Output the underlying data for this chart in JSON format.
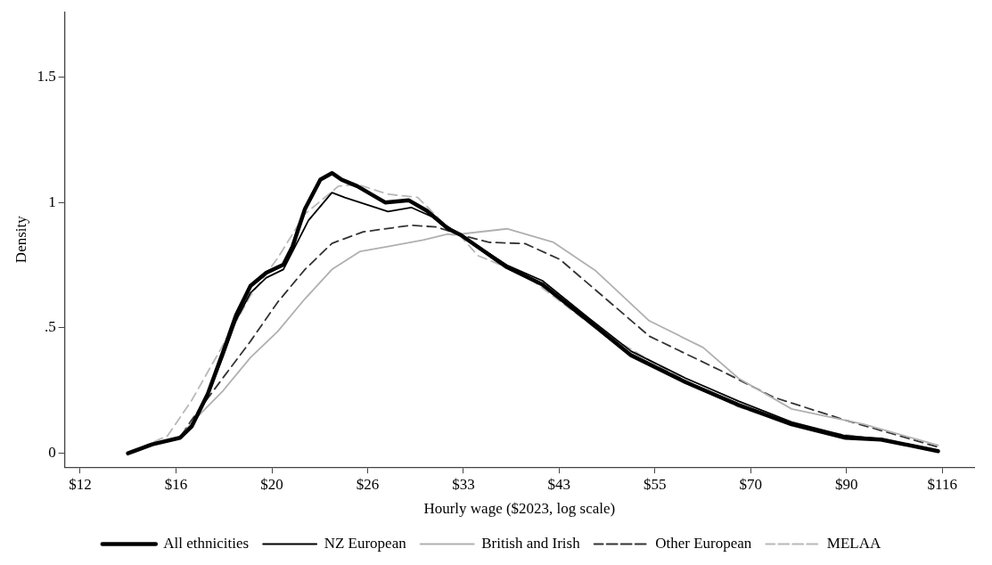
{
  "chart_data": {
    "type": "line",
    "xlabel": "Hourly wage ($2023, log scale)",
    "ylabel": "Density",
    "log": "x",
    "xlim": [
      11.7,
      125.6
    ],
    "xticks": [
      {
        "value": 12.18,
        "label": "$12"
      },
      {
        "value": 15.64,
        "label": "$16"
      },
      {
        "value": 20.09,
        "label": "$20"
      },
      {
        "value": 25.79,
        "label": "$26"
      },
      {
        "value": 33.12,
        "label": "$33"
      },
      {
        "value": 42.52,
        "label": "$43"
      },
      {
        "value": 54.6,
        "label": "$55"
      },
      {
        "value": 70.11,
        "label": "$70"
      },
      {
        "value": 90.02,
        "label": "$90"
      },
      {
        "value": 115.58,
        "label": "$116"
      }
    ],
    "ylim": [
      -0.055,
      1.76
    ],
    "yticks": [
      0,
      {
        "value": 0.5,
        "label": ".5"
      },
      1,
      1.5
    ],
    "grid": false,
    "legend": "bottom",
    "marker": "none",
    "series": [
      {
        "name": "All ethnicities",
        "color": "#000000",
        "line_style": "solid",
        "x": [
          13.8,
          14.7,
          15.8,
          16.3,
          17.0,
          17.7,
          18.3,
          19.0,
          19.8,
          20.7,
          21.2,
          21.9,
          22.8,
          23.5,
          24.1,
          25.1,
          27.0,
          28.7,
          30.1,
          31.8,
          32.9,
          37.1,
          40.7,
          45.9,
          51.3,
          59.1,
          67.9,
          78.0,
          89.8,
          98.5,
          114.3
        ],
        "values": [
          0.0,
          0.036,
          0.062,
          0.108,
          0.238,
          0.407,
          0.551,
          0.668,
          0.72,
          0.752,
          0.824,
          0.974,
          1.091,
          1.117,
          1.091,
          1.065,
          1.0,
          1.009,
          0.967,
          0.896,
          0.87,
          0.742,
          0.673,
          0.528,
          0.391,
          0.284,
          0.193,
          0.116,
          0.062,
          0.055,
          0.009
        ]
      },
      {
        "name": "NZ European",
        "color": "#000000",
        "line_style": "solid",
        "x": [
          13.8,
          14.7,
          15.8,
          16.3,
          17.0,
          17.7,
          18.3,
          19.0,
          19.8,
          20.7,
          22.1,
          23.5,
          24.3,
          27.2,
          28.9,
          30.6,
          32.9,
          37.1,
          40.7,
          45.9,
          51.3,
          59.1,
          67.9,
          78.0,
          89.8,
          98.5,
          114.3
        ],
        "values": [
          0.0,
          0.036,
          0.062,
          0.108,
          0.23,
          0.39,
          0.531,
          0.64,
          0.7,
          0.733,
          0.928,
          1.039,
          1.02,
          0.964,
          0.98,
          0.941,
          0.87,
          0.75,
          0.688,
          0.54,
          0.407,
          0.3,
          0.208,
          0.125,
          0.07,
          0.058,
          0.012
        ]
      },
      {
        "name": "British and Irish",
        "color": "#b0b0b0",
        "line_style": "solid",
        "x": [
          13.8,
          14.7,
          15.8,
          16.3,
          17.7,
          19.0,
          20.4,
          21.9,
          23.5,
          25.3,
          27.2,
          29.8,
          31.8,
          32.3,
          37.1,
          41.9,
          46.8,
          53.8,
          61.9,
          67.9,
          78.0,
          94.0,
          114.3
        ],
        "values": [
          0.0,
          0.036,
          0.062,
          0.123,
          0.251,
          0.382,
          0.486,
          0.616,
          0.733,
          0.805,
          0.824,
          0.85,
          0.874,
          0.871,
          0.895,
          0.841,
          0.727,
          0.528,
          0.422,
          0.299,
          0.177,
          0.117,
          0.032
        ]
      },
      {
        "name": "Other European",
        "color": "#333333",
        "line_style": "dashed",
        "x": [
          13.8,
          14.7,
          15.8,
          16.3,
          17.7,
          19.0,
          20.4,
          21.9,
          23.5,
          25.5,
          28.9,
          30.9,
          32.9,
          35.4,
          38.9,
          42.6,
          46.8,
          53.8,
          64.8,
          74.5,
          89.8,
          114.3
        ],
        "values": [
          0.0,
          0.036,
          0.062,
          0.134,
          0.303,
          0.447,
          0.603,
          0.733,
          0.837,
          0.883,
          0.909,
          0.902,
          0.87,
          0.841,
          0.836,
          0.773,
          0.65,
          0.467,
          0.33,
          0.223,
          0.132,
          0.025
        ]
      },
      {
        "name": "MELAA",
        "color": "#b8b8b8",
        "line_style": "dashed",
        "x": [
          13.8,
          15.3,
          16.3,
          17.7,
          19.0,
          20.4,
          21.9,
          23.9,
          25.1,
          27.2,
          29.4,
          31.8,
          32.9,
          34.4,
          38.9,
          46.8,
          56.3,
          67.9,
          81.8,
          98.5,
          114.3
        ],
        "values": [
          0.0,
          0.07,
          0.212,
          0.434,
          0.629,
          0.779,
          0.954,
          1.065,
          1.072,
          1.033,
          1.02,
          0.901,
          0.864,
          0.788,
          0.711,
          0.498,
          0.33,
          0.185,
          0.094,
          0.055,
          0.012
        ]
      }
    ]
  }
}
